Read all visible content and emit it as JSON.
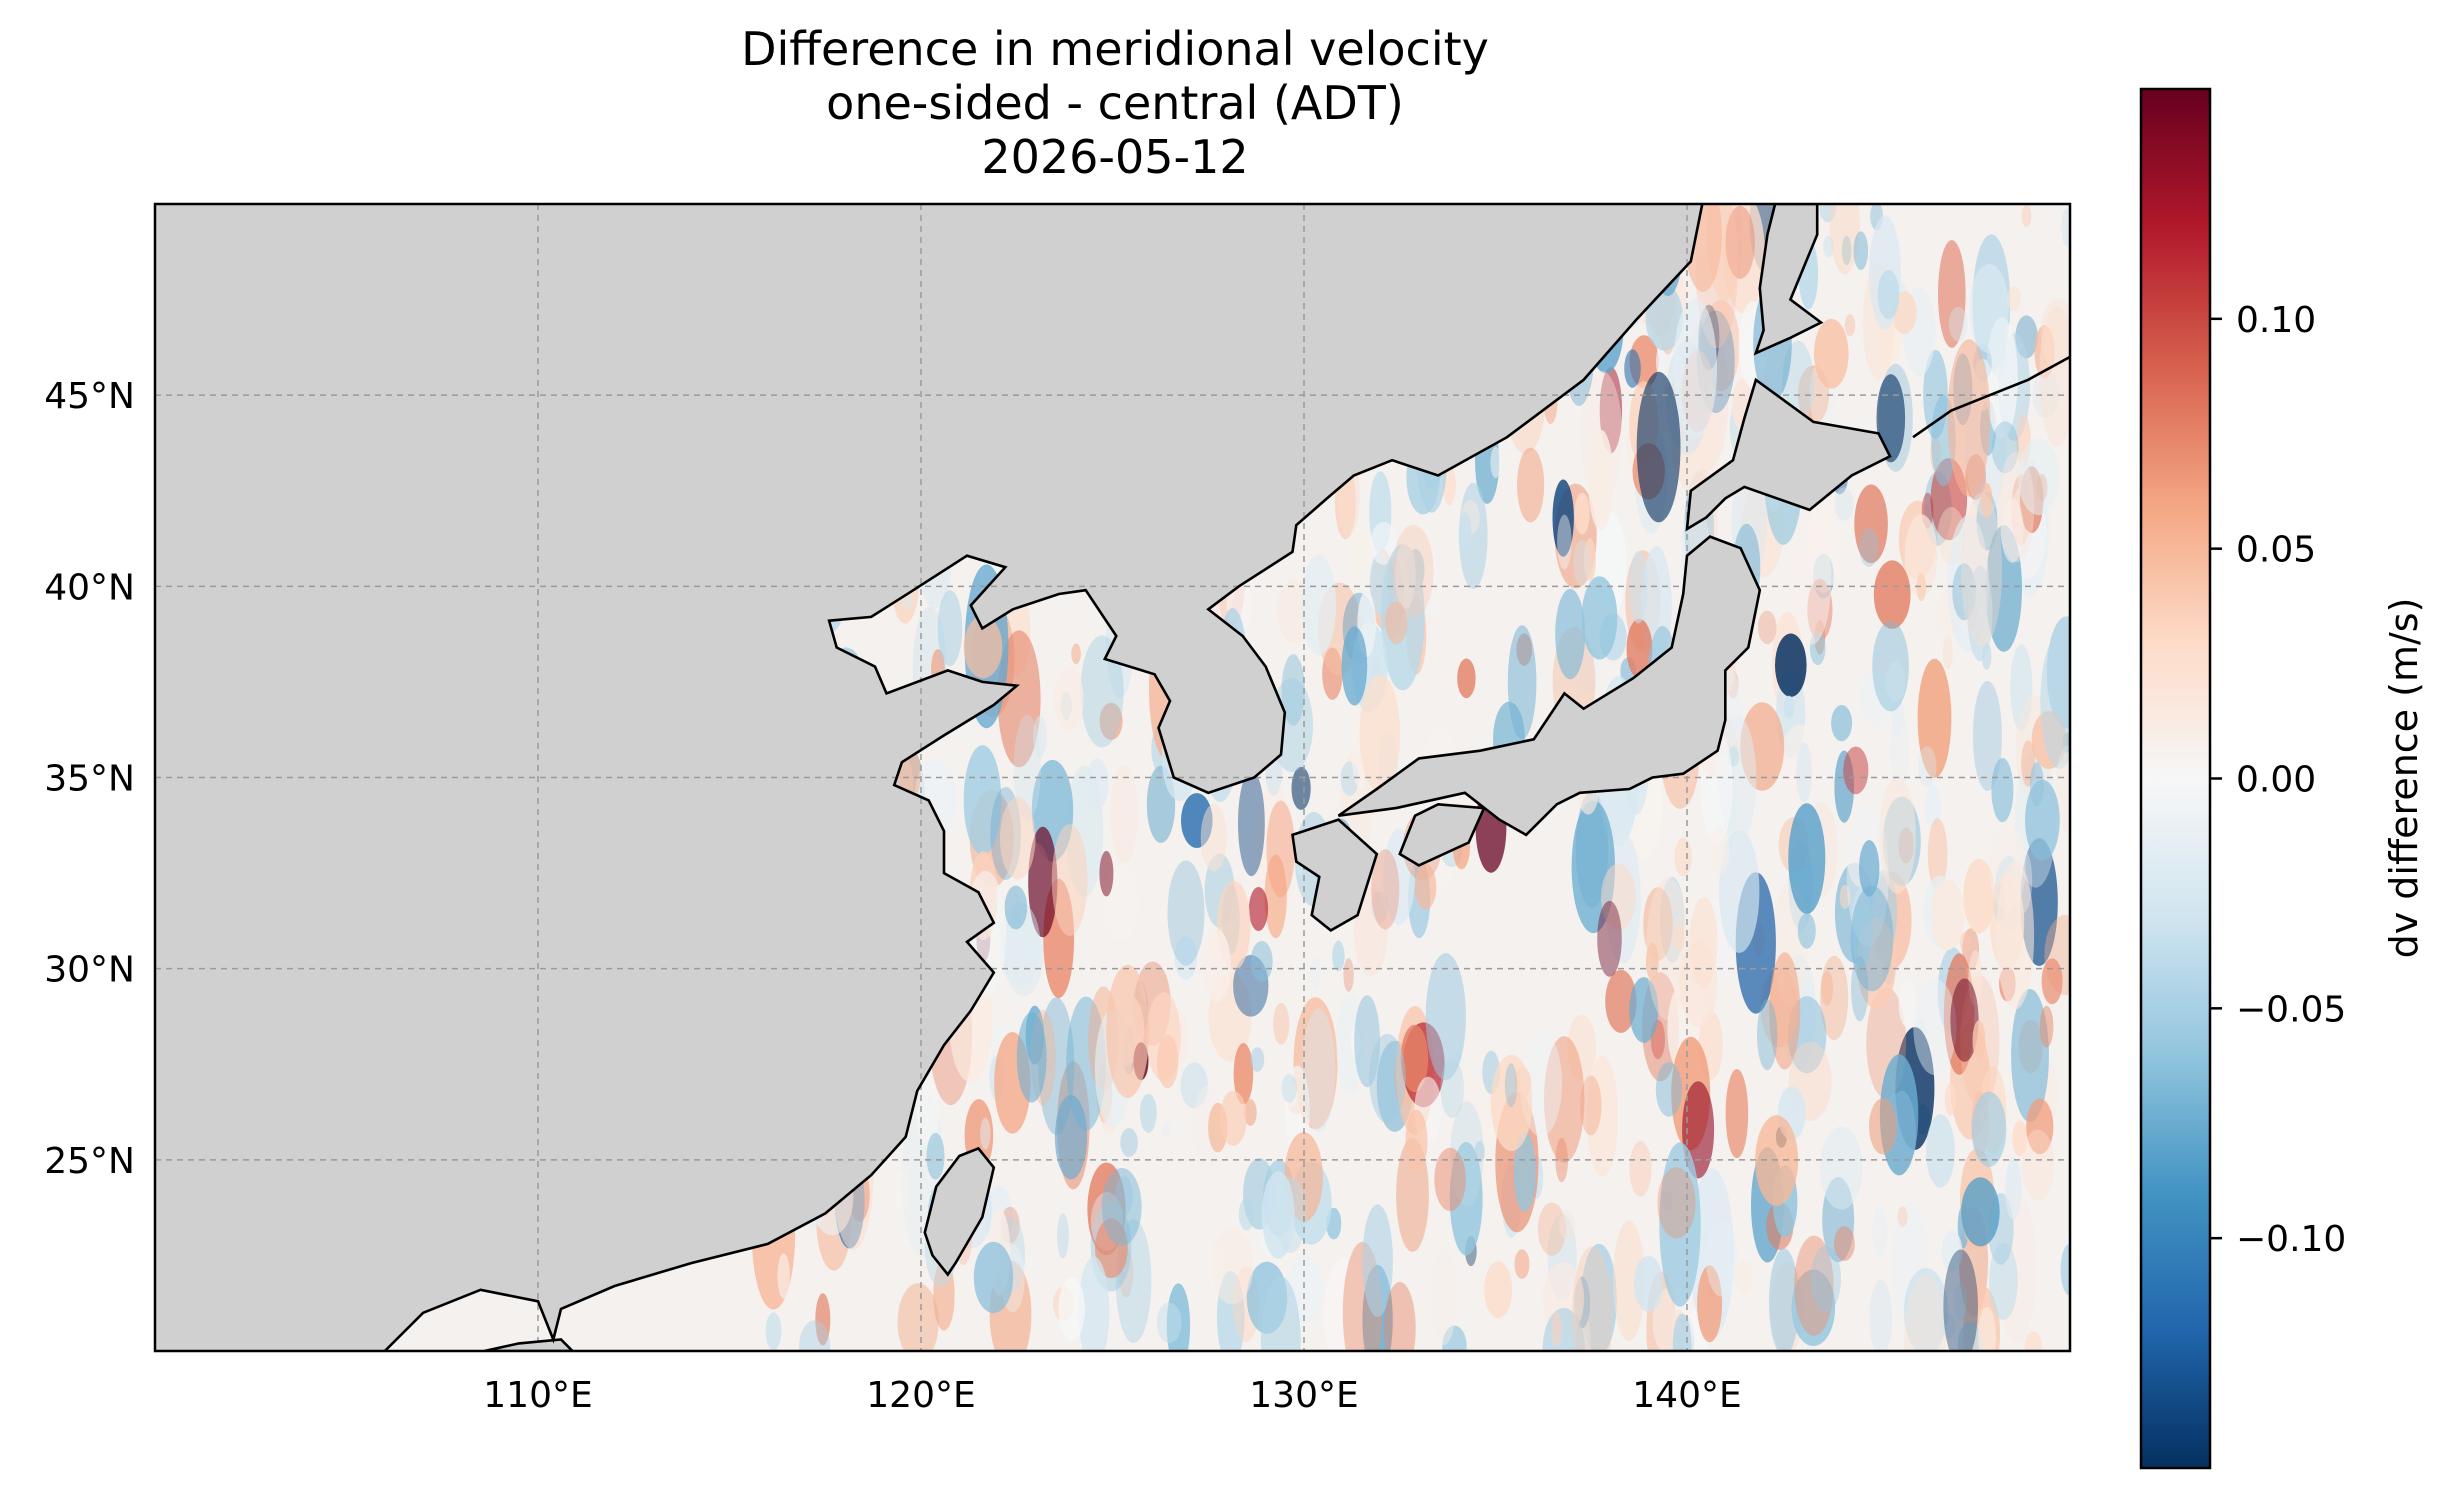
{
  "chart_data": {
    "type": "heatmap",
    "title": "Difference in meridional velocity",
    "subtitle": "one-sided - central (ADT)",
    "date": "2026-05-12",
    "xlim": [
      100,
      150
    ],
    "ylim": [
      20,
      50
    ],
    "xticks": [
      {
        "value": 110,
        "label": "110°E"
      },
      {
        "value": 120,
        "label": "120°E"
      },
      {
        "value": 130,
        "label": "130°E"
      },
      {
        "value": 140,
        "label": "140°E"
      }
    ],
    "yticks": [
      {
        "value": 25,
        "label": "25°N"
      },
      {
        "value": 30,
        "label": "30°N"
      },
      {
        "value": 35,
        "label": "35°N"
      },
      {
        "value": 40,
        "label": "40°N"
      },
      {
        "value": 45,
        "label": "45°N"
      }
    ],
    "grid": true,
    "land_color": "#d0d0d0",
    "colormap": "RdBu_r",
    "colorbar": {
      "label": "dv difference (m/s)",
      "vmin": -0.15,
      "vmax": 0.15,
      "ticks": [
        {
          "value": 0.1,
          "label": "0.10"
        },
        {
          "value": 0.05,
          "label": "0.05"
        },
        {
          "value": 0.0,
          "label": "0.00"
        },
        {
          "value": -0.05,
          "label": "−0.05"
        },
        {
          "value": -0.1,
          "label": "−0.10"
        }
      ]
    },
    "coastlines": {
      "mainland": [
        [
          106,
          20
        ],
        [
          107,
          21
        ],
        [
          108.5,
          21.6
        ],
        [
          110,
          21.3
        ],
        [
          110.4,
          20.3
        ],
        [
          110.6,
          21.1
        ],
        [
          112,
          21.7
        ],
        [
          114,
          22.3
        ],
        [
          116,
          22.8
        ],
        [
          117.5,
          23.6
        ],
        [
          118.7,
          24.6
        ],
        [
          119.6,
          25.6
        ],
        [
          119.9,
          26.8
        ],
        [
          120.6,
          28
        ],
        [
          121.3,
          28.9
        ],
        [
          121.9,
          29.9
        ],
        [
          121.2,
          30.7
        ],
        [
          121.9,
          31.2
        ],
        [
          121.5,
          32
        ],
        [
          120.6,
          32.5
        ],
        [
          120.6,
          33.6
        ],
        [
          120.2,
          34.4
        ],
        [
          119.3,
          34.8
        ],
        [
          119.5,
          35.4
        ],
        [
          120.6,
          36.1
        ],
        [
          121.9,
          36.9
        ],
        [
          122.5,
          37.4
        ],
        [
          121.6,
          37.5
        ],
        [
          120.7,
          37.8
        ],
        [
          119.1,
          37.2
        ],
        [
          118.8,
          37.9
        ],
        [
          117.8,
          38.4
        ],
        [
          117.6,
          39.1
        ],
        [
          118.7,
          39.2
        ],
        [
          119.8,
          39.9
        ],
        [
          121.2,
          40.8
        ],
        [
          122.2,
          40.5
        ],
        [
          121.3,
          39.5
        ],
        [
          121.6,
          38.9
        ],
        [
          122.4,
          39.4
        ],
        [
          123.6,
          39.8
        ],
        [
          124.3,
          39.9
        ],
        [
          125.1,
          38.7
        ],
        [
          124.8,
          38.1
        ],
        [
          126.1,
          37.7
        ],
        [
          126.5,
          37
        ],
        [
          126.2,
          36.3
        ],
        [
          126.6,
          35
        ],
        [
          127.5,
          34.6
        ],
        [
          128.7,
          35
        ],
        [
          129.4,
          35.6
        ],
        [
          129.5,
          36.7
        ],
        [
          129.0,
          37.9
        ],
        [
          128.4,
          38.7
        ],
        [
          127.5,
          39.4
        ],
        [
          128.3,
          40.0
        ],
        [
          129.7,
          40.9
        ],
        [
          129.8,
          41.6
        ],
        [
          130.6,
          42.3
        ],
        [
          131.3,
          42.9
        ],
        [
          132.3,
          43.3
        ],
        [
          133.5,
          42.9
        ],
        [
          135.3,
          43.9
        ],
        [
          137.3,
          45.4
        ],
        [
          138.7,
          47
        ],
        [
          140.1,
          48.5
        ],
        [
          140.4,
          50
        ]
      ],
      "taiwan": [
        [
          120.1,
          23.1
        ],
        [
          120.3,
          22.5
        ],
        [
          120.7,
          22
        ],
        [
          120.9,
          22.3
        ],
        [
          121.6,
          23.5
        ],
        [
          121.9,
          24.8
        ],
        [
          121.5,
          25.3
        ],
        [
          121.0,
          25.1
        ],
        [
          120.4,
          24.3
        ]
      ],
      "kyushu": [
        [
          129.7,
          33.5
        ],
        [
          130.9,
          33.9
        ],
        [
          131.9,
          33.0
        ],
        [
          131.4,
          31.4
        ],
        [
          130.7,
          31.0
        ],
        [
          130.2,
          31.4
        ],
        [
          130.4,
          32.4
        ],
        [
          129.8,
          32.8
        ]
      ],
      "shikoku": [
        [
          132.5,
          33.0
        ],
        [
          133.0,
          32.7
        ],
        [
          134.3,
          33.3
        ],
        [
          134.7,
          34.2
        ],
        [
          133.5,
          34.3
        ],
        [
          132.9,
          34.0
        ]
      ],
      "honshu": [
        [
          130.9,
          34.0
        ],
        [
          131.9,
          34.7
        ],
        [
          133.0,
          35.5
        ],
        [
          134.6,
          35.7
        ],
        [
          136.0,
          36.0
        ],
        [
          136.8,
          37.2
        ],
        [
          137.3,
          36.8
        ],
        [
          138.6,
          37.6
        ],
        [
          139.6,
          38.4
        ],
        [
          139.9,
          39.8
        ],
        [
          140.0,
          40.8
        ],
        [
          140.6,
          41.3
        ],
        [
          141.4,
          41.0
        ],
        [
          141.9,
          39.9
        ],
        [
          141.6,
          38.4
        ],
        [
          141.0,
          37.8
        ],
        [
          141.0,
          36.5
        ],
        [
          140.8,
          35.7
        ],
        [
          139.9,
          35.1
        ],
        [
          139.1,
          35.0
        ],
        [
          138.5,
          34.7
        ],
        [
          137.2,
          34.6
        ],
        [
          136.6,
          34.3
        ],
        [
          135.8,
          33.5
        ],
        [
          135.1,
          33.9
        ],
        [
          134.2,
          34.6
        ],
        [
          132.4,
          34.2
        ]
      ],
      "hokkaido": [
        [
          140.0,
          41.5
        ],
        [
          140.1,
          42.5
        ],
        [
          141.2,
          43.3
        ],
        [
          141.5,
          44.4
        ],
        [
          141.8,
          45.4
        ],
        [
          143.3,
          44.3
        ],
        [
          145.0,
          44.0
        ],
        [
          145.3,
          43.4
        ],
        [
          144.3,
          42.9
        ],
        [
          143.2,
          42.0
        ],
        [
          141.5,
          42.6
        ],
        [
          141.0,
          42.3
        ],
        [
          140.5,
          41.8
        ]
      ],
      "sakhalin": [
        [
          141.8,
          46.1
        ],
        [
          142.0,
          46.7
        ],
        [
          141.9,
          47.8
        ],
        [
          142.1,
          49.2
        ],
        [
          142.3,
          50
        ],
        [
          143.4,
          50
        ],
        [
          143.4,
          49.2
        ],
        [
          142.7,
          47.5
        ],
        [
          143.5,
          46.9
        ],
        [
          142.7,
          46.5
        ]
      ],
      "kurils": [
        [
          145.9,
          43.9
        ],
        [
          146.9,
          44.6
        ],
        [
          147.9,
          45.0
        ],
        [
          148.9,
          45.4
        ],
        [
          150,
          46.0
        ]
      ],
      "hainan": [
        [
          108.6,
          20
        ],
        [
          110.9,
          20
        ],
        [
          110.6,
          20.3
        ],
        [
          109.5,
          20.2
        ]
      ]
    }
  }
}
